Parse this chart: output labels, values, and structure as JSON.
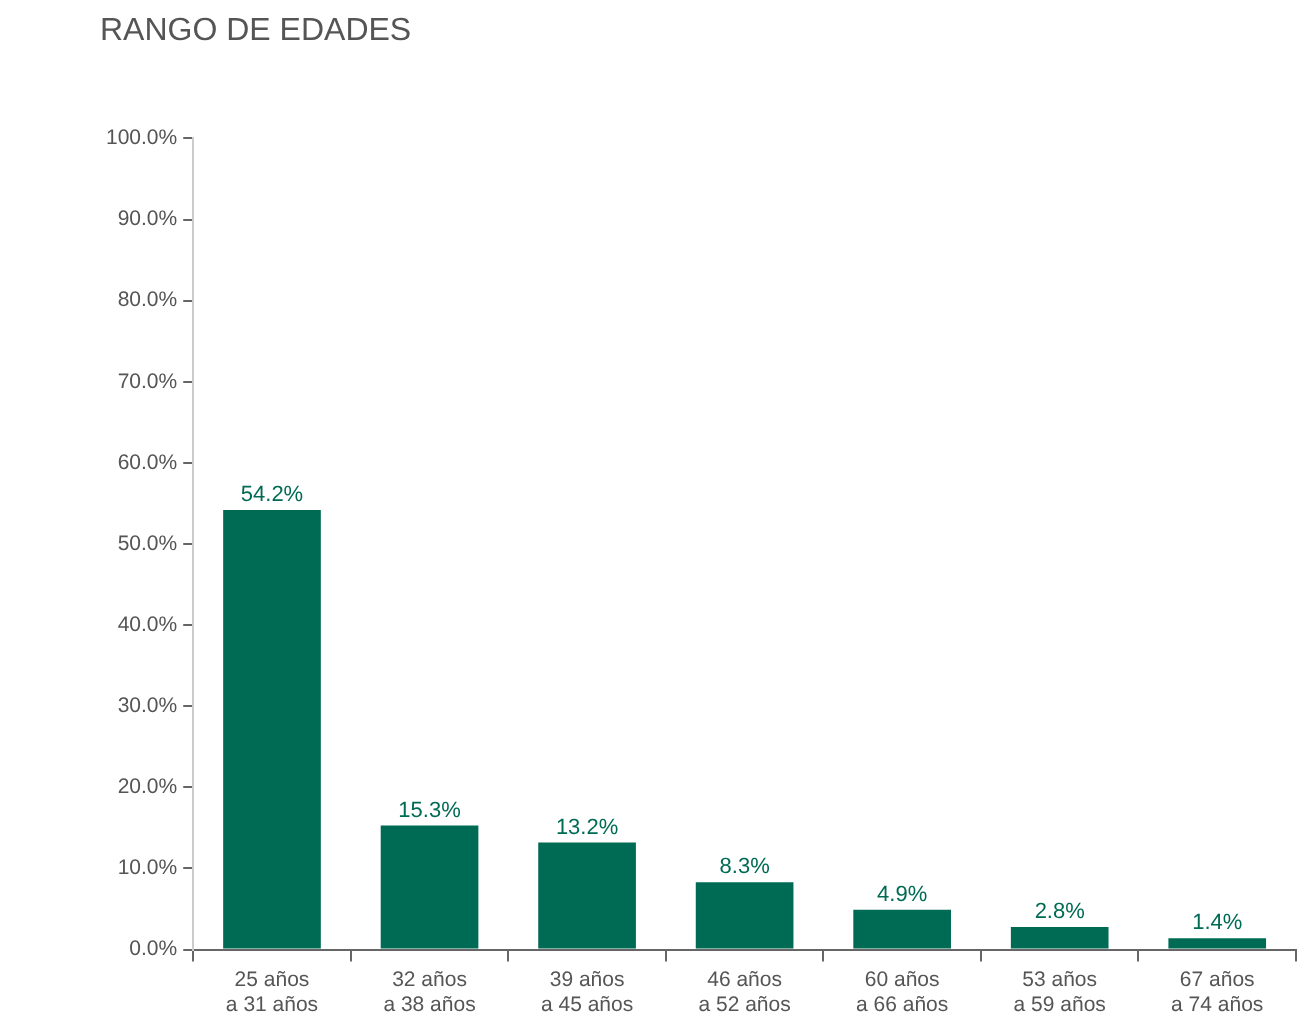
{
  "chart_data": {
    "type": "bar",
    "title": "RANGO DE EDADES",
    "categories": [
      "25 años a 31 años",
      "32 años a 38 años",
      "39 años a 45 años",
      "46 años a 52 años",
      "60 años a 66 años",
      "53 años a 59 años",
      "67 años a 74 años"
    ],
    "values": [
      54.2,
      15.3,
      13.2,
      8.3,
      4.9,
      2.8,
      1.4
    ],
    "value_labels": [
      "54.2%",
      "15.3%",
      "13.2%",
      "8.3%",
      "4.9%",
      "2.8%",
      "1.4%"
    ],
    "color": "#006b54",
    "ylim": [
      0,
      100
    ],
    "yticks": [
      {
        "value": 0,
        "label": "0.0%"
      },
      {
        "value": 10,
        "label": "10.0%"
      },
      {
        "value": 20,
        "label": "20.0%"
      },
      {
        "value": 30,
        "label": "30.0%"
      },
      {
        "value": 40,
        "label": "40.0%"
      },
      {
        "value": 50,
        "label": "50.0%"
      },
      {
        "value": 60,
        "label": "60.0%"
      },
      {
        "value": 70,
        "label": "70.0%"
      },
      {
        "value": 80,
        "label": "80.0%"
      },
      {
        "value": 90,
        "label": "90.0%"
      },
      {
        "value": 100,
        "label": "100.0%"
      }
    ],
    "grid": false,
    "legend": false
  }
}
